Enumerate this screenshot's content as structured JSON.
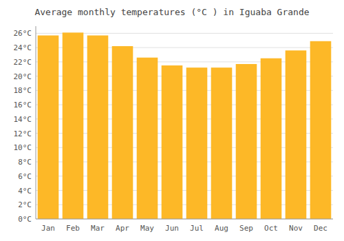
{
  "chart_data": {
    "type": "bar",
    "title": "Average monthly temperatures (°C ) in Iguaba Grande",
    "categories": [
      "Jan",
      "Feb",
      "Mar",
      "Apr",
      "May",
      "Jun",
      "Jul",
      "Aug",
      "Sep",
      "Oct",
      "Nov",
      "Dec"
    ],
    "values": [
      25.7,
      26.1,
      25.7,
      24.2,
      22.6,
      21.5,
      21.2,
      21.2,
      21.7,
      22.5,
      23.6,
      24.9
    ],
    "color": "#FDB827",
    "ylim": [
      0,
      27
    ],
    "yticks": [
      {
        "value": 0,
        "label": "0°C"
      },
      {
        "value": 2,
        "label": "2°C"
      },
      {
        "value": 4,
        "label": "4°C"
      },
      {
        "value": 6,
        "label": "6°C"
      },
      {
        "value": 8,
        "label": "8°C"
      },
      {
        "value": 10,
        "label": "10°C"
      },
      {
        "value": 12,
        "label": "12°C"
      },
      {
        "value": 14,
        "label": "14°C"
      },
      {
        "value": 16,
        "label": "16°C"
      },
      {
        "value": 18,
        "label": "18°C"
      },
      {
        "value": 20,
        "label": "20°C"
      },
      {
        "value": 22,
        "label": "22°C"
      },
      {
        "value": 24,
        "label": "24°C"
      },
      {
        "value": 26,
        "label": "26°C"
      }
    ],
    "grid": true
  }
}
